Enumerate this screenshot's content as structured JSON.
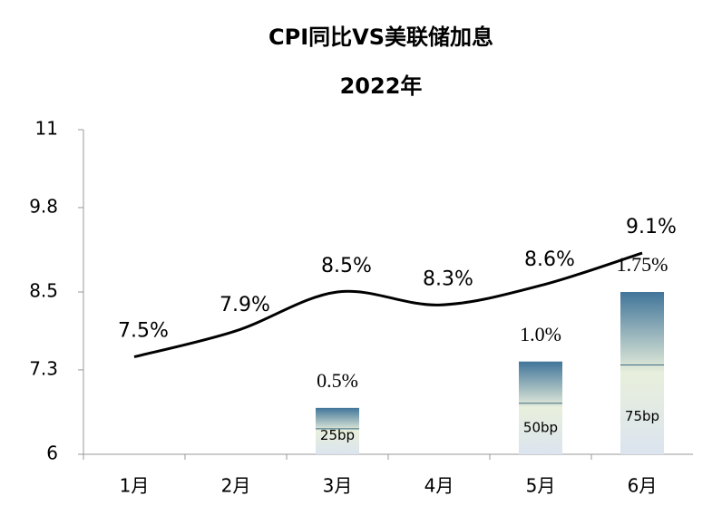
{
  "chart_data": {
    "type": "line",
    "title": "CPI同比VS美联储加息",
    "subtitle": "2022年",
    "categories": [
      "1月",
      "2月",
      "3月",
      "4月",
      "5月",
      "6月"
    ],
    "series": [
      {
        "name": "CPI同比",
        "type": "line",
        "color": "#000000",
        "values": [
          7.5,
          7.9,
          8.5,
          8.3,
          8.6,
          9.1
        ],
        "value_labels": [
          "7.5%",
          "7.9%",
          "8.5%",
          "8.3%",
          "8.6%",
          "9.1%"
        ]
      },
      {
        "name": "加息",
        "type": "bar",
        "axis": "y2",
        "color": "#4a7d9a",
        "values": [
          null,
          null,
          0.5,
          null,
          1.0,
          1.75
        ],
        "value_labels": [
          null,
          null,
          "0.5%",
          null,
          "1.0%",
          "1.75%"
        ],
        "bar_labels": [
          null,
          null,
          "25bp",
          null,
          "50bp",
          "75bp"
        ]
      }
    ],
    "ylim": [
      6,
      11
    ],
    "yticks": [
      6,
      7.3,
      8.5,
      9.8,
      11
    ],
    "y2lim": [
      0,
      3.5
    ],
    "grid": false
  }
}
